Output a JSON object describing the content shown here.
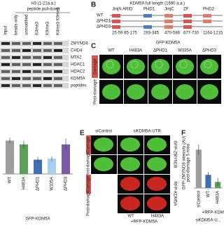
{
  "panel_a": {
    "header": "H3 (1-21a.a.)",
    "subheader": "peptide pull-down",
    "columns": [
      "Input",
      "beads only",
      "unmodified",
      "K4me3",
      "K9me3",
      "K4me3 K9me3"
    ],
    "rows": [
      "ZMYND8",
      "CHD4",
      "MTA2",
      "HDAC1",
      "HDAC2",
      "KDM5A",
      "peptides"
    ]
  },
  "panel_b": {
    "letter": "B",
    "title": "KDM5A full length (1690 a.a.)",
    "rows": [
      "WT",
      "ΔPHD1",
      "ΔPHD3"
    ],
    "domains": [
      "JmjN ARID",
      "PHD1",
      "JmjC",
      "ZF",
      "PHD2"
    ],
    "ranges": [
      "25-59 85-175",
      "293-345",
      "470-586",
      "677-730",
      "1164-1215"
    ]
  },
  "panel_c": {
    "letter": "C",
    "title": "GFP-KDM5A",
    "columns": [
      "WT",
      "H483A",
      "ΔPHD1",
      "W335A",
      "ΔPHD3"
    ],
    "rows": [
      "Damage",
      "Post-damage"
    ]
  },
  "panel_e": {
    "letter": "E",
    "groups": [
      "siControl",
      "siKDM5A-UTR"
    ],
    "rows": [
      "Damage",
      "Post-damage",
      "Damage",
      "Post-damage"
    ],
    "channels": [
      "GFP-ZMYND8",
      "RFP-KDM5A"
    ],
    "columns": [
      "WT",
      "H483A"
    ],
    "footer": "+RFP-KDM5A"
  },
  "chart_data": [
    {
      "type": "bar",
      "categories": [
        "WT",
        "H483A",
        "ΔPHD1",
        "W335A",
        "ΔPHD3"
      ],
      "values": [
        70,
        62,
        30,
        32,
        62
      ],
      "errors": [
        6,
        8,
        6,
        5,
        12
      ],
      "colors": [
        "#9e9e9e",
        "#5aa05a",
        "#3f6fb5",
        "#a9cfee",
        "#7b5ba6"
      ],
      "xlabel": "GFP-KDM5A",
      "ylim": [
        0,
        100
      ]
    },
    {
      "type": "bar",
      "letter": "F",
      "ylabel": "GFP-ZMYND8 intensity (AU)",
      "ylabel2": "post-damage 5 mins",
      "categories": [
        "siControl",
        "WT",
        "H483A"
      ],
      "group_label": "-",
      "values": [
        380,
        130,
        60
      ],
      "errors": [
        50,
        30,
        40
      ],
      "colors": [
        "#9e9e9e",
        "#3f6fb5",
        "#5aa05a"
      ],
      "xlabel": "siKDM5A-U...",
      "sublabel": "+RFP-KDM5A",
      "ylim": [
        0,
        500
      ]
    }
  ]
}
